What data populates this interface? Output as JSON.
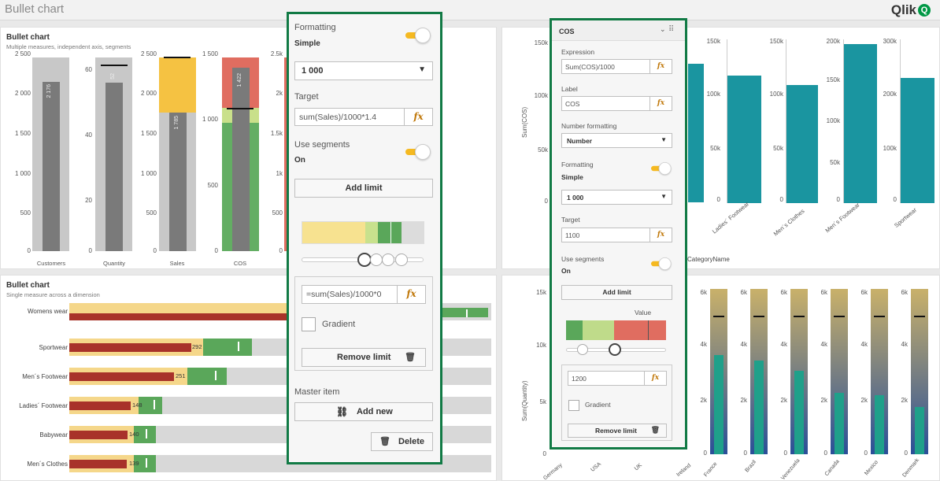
{
  "app": {
    "title": "Bullet chart",
    "logo": "Qlik",
    "logo_q": "Q"
  },
  "bullet_vertical": {
    "title": "Bullet chart",
    "subtitle": "Multiple measures, independent axis, segments",
    "customers": {
      "label": "Customers",
      "ticks": [
        "2 500",
        "2 000",
        "1 500",
        "1 000",
        "500",
        "0"
      ],
      "value": "2 176"
    },
    "quantity": {
      "label": "Quantity",
      "ticks": [
        "60",
        "40",
        "20",
        "0"
      ],
      "value": "52"
    },
    "sales": {
      "label": "Sales",
      "ticks": [
        "2 500",
        "2 000",
        "1 500",
        "1 000",
        "500",
        "0"
      ],
      "value": "1 785"
    },
    "cos": {
      "label": "COS",
      "ticks": [
        "1 500",
        "1 000",
        "500",
        "0"
      ],
      "value": "1 422"
    },
    "extra_ticks": [
      "2.5k",
      "2k",
      "1.5k",
      "1k",
      "500",
      "0"
    ]
  },
  "bullet_horizontal": {
    "title": "Bullet chart",
    "subtitle": "Single measure across a dimension",
    "rows": [
      {
        "label": "Womens wear",
        "value": ""
      },
      {
        "label": "Sportwear",
        "value": "292"
      },
      {
        "label": "Men´s Footwear",
        "value": "251"
      },
      {
        "label": "Ladies´ Footwear",
        "value": "148"
      },
      {
        "label": "Babywear",
        "value": "140"
      },
      {
        "label": "Men´s Clothes",
        "value": "139"
      }
    ]
  },
  "panel_left": {
    "formatting_label": "Formatting",
    "formatting_value": "Simple",
    "number_value": "1 000",
    "target_label": "Target",
    "target_expr": "sum(Sales)/1000*1.4",
    "use_segments_label": "Use segments",
    "use_segments_value": "On",
    "add_limit": "Add limit",
    "limit_expr": "=sum(Sales)/1000*0",
    "gradient": "Gradient",
    "remove_limit": "Remove limit",
    "master_item": "Master item",
    "add_new": "Add new",
    "delete": "Delete",
    "fx": "fx"
  },
  "panel_right": {
    "header": "COS",
    "expression_label": "Expression",
    "expression": "Sum(COS)/1000",
    "label_label": "Label",
    "label_value": "COS",
    "number_formatting_label": "Number formatting",
    "number_formatting_value": "Number",
    "formatting_label": "Formatting",
    "formatting_value": "Simple",
    "number_value": "1 000",
    "target_label": "Target",
    "target_value": "1100",
    "use_segments_label": "Use segments",
    "use_segments_value": "On",
    "add_limit": "Add limit",
    "value_label": "Value",
    "limit_value": "1200",
    "gradient": "Gradient",
    "remove_limit": "Remove limit",
    "fx": "fx"
  },
  "bar_chart": {
    "ylabel": "Sum(COS)",
    "xlabel": "CategoryName",
    "left_ticks": [
      "150k",
      "100k",
      "50k",
      "0"
    ],
    "panels": [
      {
        "ticks": [
          "150k",
          "100k",
          "50k",
          "0"
        ],
        "category": "Ladies´ Footwear"
      },
      {
        "ticks": [
          "150k",
          "100k",
          "50k",
          "0"
        ],
        "category": "Men´s Clothes"
      },
      {
        "ticks": [
          "200k",
          "150k",
          "100k",
          "50k",
          "0"
        ],
        "category": "Men´s Footwear"
      },
      {
        "ticks": [
          "300k",
          "200k",
          "100k",
          "0"
        ],
        "category": "Sportwear"
      }
    ]
  },
  "country_chart": {
    "ylabel": "Sum(Quantity)",
    "left_ticks": [
      "15k",
      "10k",
      "5k",
      "0"
    ],
    "left_categories": [
      "Germany",
      "USA",
      "UK",
      "Ireland"
    ],
    "panels": [
      {
        "ticks": [
          "6k",
          "4k",
          "2k",
          "0"
        ],
        "category": "France"
      },
      {
        "ticks": [
          "6k",
          "4k",
          "2k",
          "0"
        ],
        "category": "Brazil"
      },
      {
        "ticks": [
          "6k",
          "4k",
          "2k",
          "0"
        ],
        "category": "Venezuela"
      },
      {
        "ticks": [
          "6k",
          "4k",
          "2k",
          "0"
        ],
        "category": "Canada"
      },
      {
        "ticks": [
          "6k",
          "4k",
          "2k",
          "0"
        ],
        "category": "Mexico"
      },
      {
        "ticks": [
          "6k",
          "4k",
          "2k",
          "0"
        ],
        "category": "Denmark"
      }
    ]
  },
  "colors": {
    "green_border": "#117a45",
    "teal": "#1a95a0",
    "toggle": "#f5b921",
    "red": "#a8322a",
    "green": "#5aa75a",
    "yellow": "#f5c242"
  }
}
